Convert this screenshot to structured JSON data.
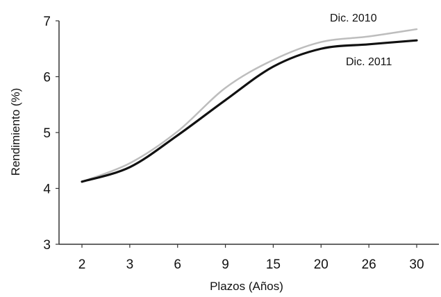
{
  "chart_data": {
    "type": "line",
    "title": "",
    "xlabel": "Plazos (Años)",
    "ylabel": "Rendimiento (%)",
    "categories": [
      "2",
      "3",
      "6",
      "9",
      "15",
      "20",
      "26",
      "30"
    ],
    "ylim": [
      3,
      7
    ],
    "yticks": [
      3,
      4,
      5,
      6,
      7
    ],
    "grid": false,
    "legend": "inline-labels",
    "series": [
      {
        "name": "Dic. 2010",
        "color": "#bdbdbd",
        "values": [
          4.12,
          4.45,
          5.02,
          5.8,
          6.3,
          6.62,
          6.72,
          6.85
        ]
      },
      {
        "name": "Dic. 2011",
        "color": "#111111",
        "values": [
          4.12,
          4.38,
          4.95,
          5.58,
          6.18,
          6.5,
          6.58,
          6.65
        ]
      }
    ]
  }
}
